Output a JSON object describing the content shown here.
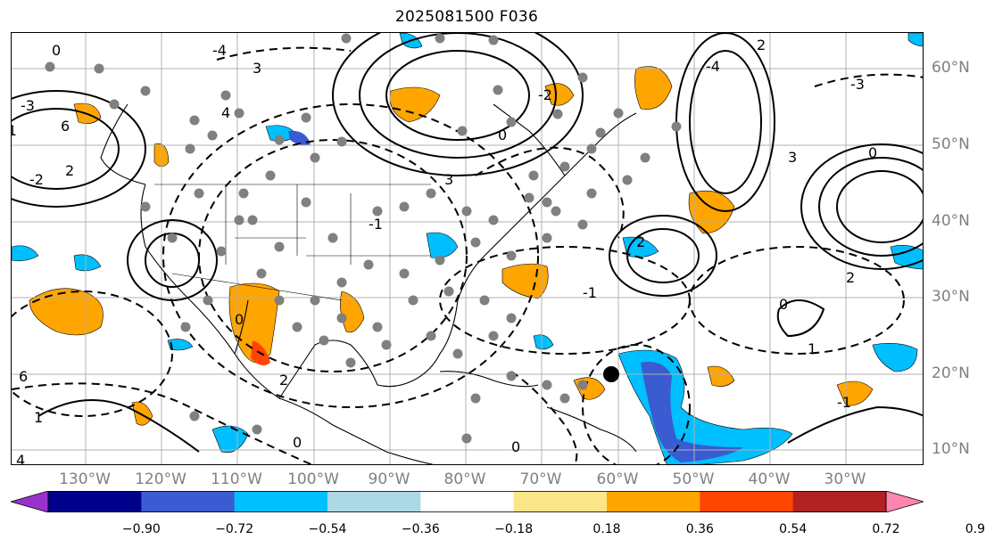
{
  "title": "2025081500 F036",
  "lon_labels": [
    "130°W",
    "120°W",
    "110°W",
    "100°W",
    "90°W",
    "80°W",
    "70°W",
    "60°W",
    "50°W",
    "40°W",
    "30°W"
  ],
  "lat_labels": [
    "60°N",
    "50°N",
    "40°N",
    "30°N",
    "20°N",
    "10°N"
  ],
  "contour_labels": [
    "0",
    "2",
    "3",
    "4",
    "6",
    "-1",
    "-2",
    "-3",
    "-4",
    "0",
    "2",
    "3",
    "-1",
    "-2",
    "0",
    "3",
    "4",
    "6",
    "2",
    "-4",
    "-3",
    "0",
    "1",
    "-1",
    "0",
    "2",
    "0",
    "-1",
    "0",
    "1",
    "2"
  ],
  "colorbar": {
    "ticks": [
      "−0.90",
      "−0.72",
      "−0.54",
      "−0.36",
      "−0.18",
      "0.18",
      "0.36",
      "0.54",
      "0.72",
      "0.90"
    ],
    "colors": [
      "#9932cc",
      "#00008b",
      "#3a5bd1",
      "#00bfff",
      "#add8e6",
      "#ffffff",
      "#fde68a",
      "#ffa500",
      "#ff4500",
      "#b22222",
      "#ff85b0"
    ],
    "under_color": "#9932cc",
    "over_color": "#ff85b0"
  },
  "markers": {
    "storm_center_color": "#000000",
    "observation_color": "#808080"
  }
}
